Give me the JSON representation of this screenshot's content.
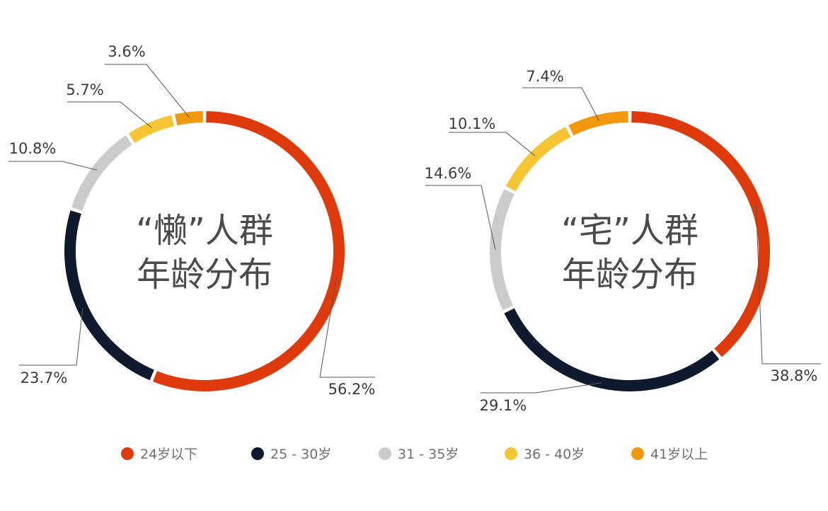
{
  "legend": [
    "24岁以下",
    "25 - 30岁",
    "31 - 35岁",
    "36 - 40岁",
    "41岁以上"
  ],
  "colors": [
    "#df3a0c",
    "#0f1a2e",
    "#cbcbcb",
    "#f6c534",
    "#f1980f"
  ],
  "chart_data": [
    {
      "type": "pie",
      "variant": "donut",
      "title_lines": [
        "“懒”人群",
        "年龄分布"
      ],
      "categories": [
        "24岁以下",
        "25 - 30岁",
        "31 - 35岁",
        "36 - 40岁",
        "41岁以上"
      ],
      "values": [
        56.2,
        23.7,
        10.8,
        5.7,
        3.6
      ],
      "labels": [
        "56.2%",
        "23.7%",
        "10.8%",
        "5.7%",
        "3.6%"
      ]
    },
    {
      "type": "pie",
      "variant": "donut",
      "title_lines": [
        "“宅”人群",
        "年龄分布"
      ],
      "categories": [
        "24岁以下",
        "25 - 30岁",
        "31 - 35岁",
        "36 - 40岁",
        "41岁以上"
      ],
      "values": [
        38.8,
        29.1,
        14.6,
        10.1,
        7.4
      ],
      "labels": [
        "38.8%",
        "29.1%",
        "14.6%",
        "10.1%",
        "7.4%"
      ]
    }
  ],
  "legend_position": "bottom"
}
